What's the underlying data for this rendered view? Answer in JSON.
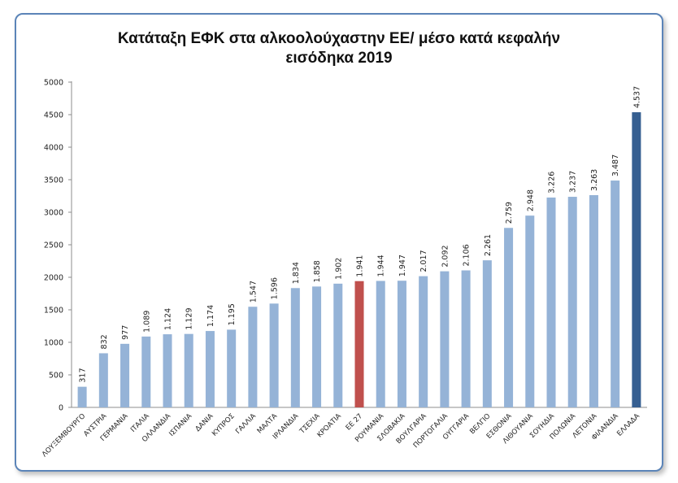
{
  "chart_data": {
    "type": "bar",
    "title_line1": "Κατάταξη ΕΦΚ στα αλκοολούχαστην ΕΕ/ μέσο κατά κεφαλήν",
    "title_line2": "εισόδηκα 2019",
    "ylim": [
      0,
      5000
    ],
    "yticks": [
      0,
      500,
      1000,
      1500,
      2000,
      2500,
      3000,
      3500,
      4000,
      4500,
      5000
    ],
    "grid": false,
    "legend": "none",
    "categories": [
      "ΛΟΥΞΕΜΒΟΥΡΓΟ",
      "ΑΥΣΤΡΙΑ",
      "ΓΕΡΜΑΝΙΑ",
      "ΙΤΑΛΙΑ",
      "ΟΛΛΑΝΔΙΑ",
      "ΙΣΠΑΝΙΑ",
      "ΔΑΝΙΑ",
      "ΚΥΠΡΟΣ",
      "ΓΑΛΛΙΑ",
      "ΜΑΛΤΑ",
      "ΙΡΛΑΝΔΙΑ",
      "ΤΣΕΧΙΑ",
      "ΚΡΟΑΤΙΑ",
      "ΕΕ 27",
      "ΡΟΥΜΑΝΙΑ",
      "ΣΛΟΒΑΚΙΑ",
      "ΒΟΥΛΓΑΡΙΑ",
      "ΠΟΡΤΟΓΑΛΙΑ",
      "ΟΥΓΓΑΡΙΑ",
      "ΒΕΛΓΙΟ",
      "ΕΣΘΟΝΙΑ",
      "ΛΙΘΟΥΑΝΙΑ",
      "ΣΟΥΗΔΙΑ",
      "ΠΟΛΩΝΙΑ",
      "ΛΕΤΟΝΙΑ",
      "ΦΙΛΑΝΔΙΑ",
      "ΕΛΛΑΔΑ"
    ],
    "values": [
      317,
      832,
      977,
      1089,
      1124,
      1129,
      1174,
      1195,
      1547,
      1596,
      1834,
      1858,
      1902,
      1941,
      1944,
      1947,
      2017,
      2092,
      2106,
      2261,
      2759,
      2948,
      3226,
      3237,
      3263,
      3487,
      4537
    ],
    "value_labels": [
      "317",
      "832",
      "977",
      "1.089",
      "1.124",
      "1.129",
      "1.174",
      "1.195",
      "1.547",
      "1.596",
      "1.834",
      "1.858",
      "1.902",
      "1.941",
      "1.944",
      "1.947",
      "2.017",
      "2.092",
      "2.106",
      "2.261",
      "2.759",
      "2.948",
      "3.226",
      "3.237",
      "3.263",
      "3.487",
      "4.537"
    ],
    "colors": {
      "default": "#95b3d7",
      "ЕЕ 27": "#c0504d",
      "ΕΕ 27": "#c0504d",
      "ΕΛΛΑΔΑ": "#365f91"
    }
  }
}
